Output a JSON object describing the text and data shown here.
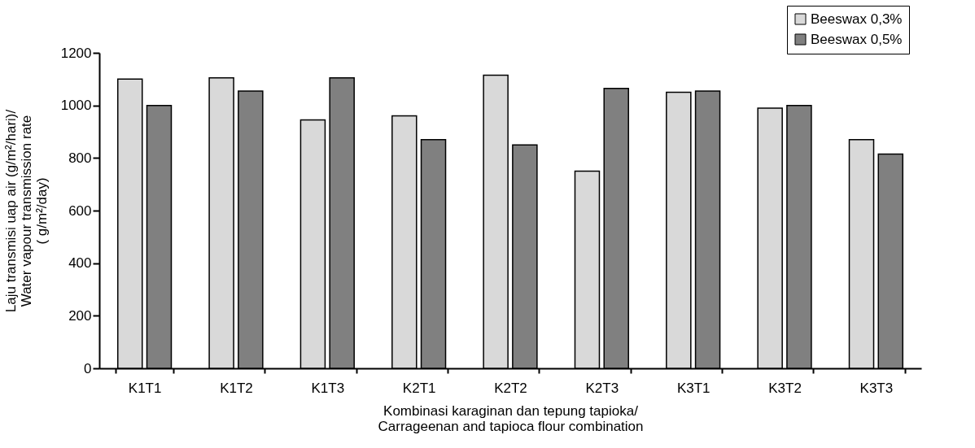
{
  "chart_data": {
    "type": "bar",
    "xlabel": "Kombinasi karaginan dan tepung tapioka/\nCarrageenan and tapioca flour combination",
    "ylabel": "Laju transmisi uap air (g/m²/hari)/\nWater vapour transmission rate\n( g/m²/day)",
    "categories": [
      "K1T1",
      "K1T2",
      "K1T3",
      "K2T1",
      "K2T2",
      "K2T3",
      "K3T1",
      "K3T2",
      "K3T3"
    ],
    "series": [
      {
        "name": "Beeswax 0,3%",
        "color": "#d9d9d9",
        "values": [
          1100,
          1105,
          945,
          960,
          1115,
          750,
          1050,
          990,
          870
        ]
      },
      {
        "name": "Beeswax 0,5%",
        "color": "#808080",
        "values": [
          1000,
          1055,
          1105,
          870,
          850,
          1065,
          1055,
          1000,
          815
        ]
      }
    ],
    "ylim": [
      0,
      1200
    ],
    "yticks": [
      0,
      200,
      400,
      600,
      800,
      1000,
      1200
    ],
    "grid": false,
    "legend": "top right"
  }
}
